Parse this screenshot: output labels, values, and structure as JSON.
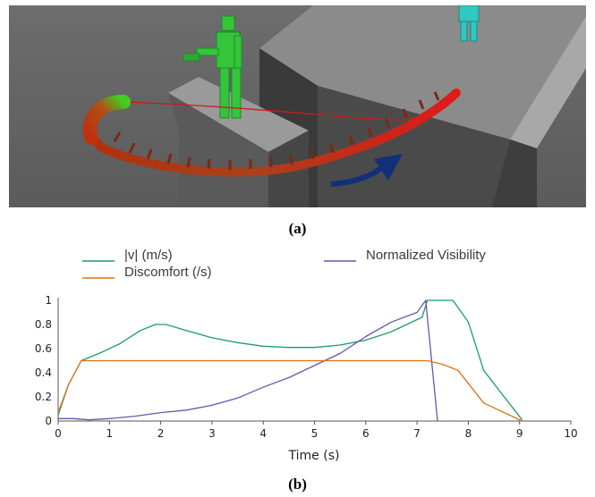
{
  "captions": {
    "a": "(a)",
    "b": "(b)"
  },
  "colors": {
    "velocity": "#1a9a72",
    "discomfort": "#e07010",
    "visibility": "#6a55b0",
    "axis": "#555555"
  },
  "chart_data": {
    "type": "line",
    "title": "",
    "xlabel": "Time (s)",
    "ylabel": "",
    "xlim": [
      0,
      10
    ],
    "ylim": [
      0,
      1
    ],
    "x_ticks": [
      "0",
      "1",
      "2",
      "3",
      "4",
      "5",
      "6",
      "7",
      "8",
      "9",
      "10"
    ],
    "y_ticks": [
      "0",
      "0.2",
      "0.4",
      "0.6",
      "0.8",
      "1"
    ],
    "grid": false,
    "legend_position": "top",
    "series": [
      {
        "name": "|v| (m/s)",
        "color": "#1a9a72",
        "points": [
          [
            0,
            0.05
          ],
          [
            0.2,
            0.3
          ],
          [
            0.45,
            0.5
          ],
          [
            0.8,
            0.56
          ],
          [
            1.2,
            0.64
          ],
          [
            1.6,
            0.75
          ],
          [
            1.9,
            0.8
          ],
          [
            2.1,
            0.8
          ],
          [
            2.5,
            0.75
          ],
          [
            3,
            0.69
          ],
          [
            3.5,
            0.65
          ],
          [
            4,
            0.62
          ],
          [
            4.5,
            0.61
          ],
          [
            5,
            0.61
          ],
          [
            5.5,
            0.63
          ],
          [
            6,
            0.67
          ],
          [
            6.5,
            0.74
          ],
          [
            7.1,
            0.86
          ],
          [
            7.2,
            1.0
          ],
          [
            7.7,
            1.0
          ],
          [
            8,
            0.82
          ],
          [
            8.3,
            0.42
          ],
          [
            8.7,
            0.2
          ],
          [
            9.05,
            0.01
          ]
        ]
      },
      {
        "name": "Normalized Visibility",
        "color": "#6a55b0",
        "points": [
          [
            0,
            0.02
          ],
          [
            0.3,
            0.02
          ],
          [
            0.6,
            0.01
          ],
          [
            1,
            0.02
          ],
          [
            1.5,
            0.04
          ],
          [
            2,
            0.07
          ],
          [
            2.5,
            0.09
          ],
          [
            3,
            0.13
          ],
          [
            3.5,
            0.19
          ],
          [
            4,
            0.28
          ],
          [
            4.5,
            0.36
          ],
          [
            5,
            0.46
          ],
          [
            5.5,
            0.56
          ],
          [
            6,
            0.7
          ],
          [
            6.5,
            0.82
          ],
          [
            7,
            0.9
          ],
          [
            7.17,
            1.0
          ],
          [
            7.4,
            0.0
          ]
        ]
      },
      {
        "name": "Discomfort (/s)",
        "color": "#e07010",
        "points": [
          [
            0,
            0.07
          ],
          [
            0.2,
            0.3
          ],
          [
            0.45,
            0.5
          ],
          [
            1,
            0.5
          ],
          [
            2,
            0.5
          ],
          [
            3,
            0.5
          ],
          [
            4,
            0.5
          ],
          [
            5,
            0.5
          ],
          [
            6,
            0.5
          ],
          [
            7,
            0.5
          ],
          [
            7.2,
            0.5
          ],
          [
            7.5,
            0.47
          ],
          [
            7.8,
            0.42
          ],
          [
            8.3,
            0.15
          ],
          [
            9.05,
            0.0
          ]
        ]
      }
    ]
  }
}
